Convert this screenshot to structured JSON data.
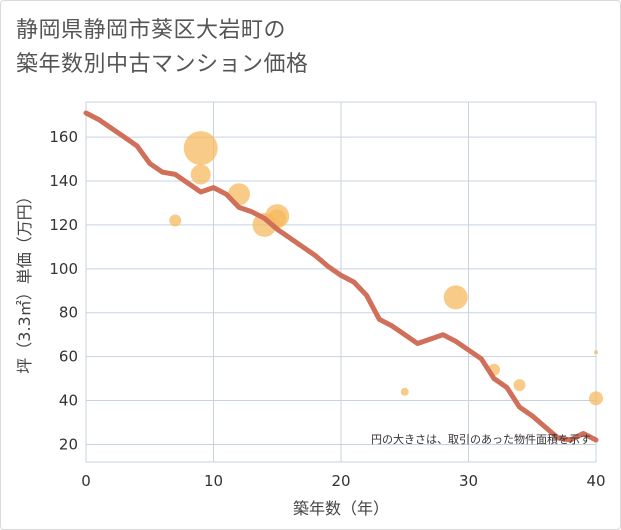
{
  "title_line1": "静岡県静岡市葵区大岩町の",
  "title_line2": "築年数別中古マンション価格",
  "chart_data": {
    "type": "scatter",
    "xlabel": "築年数（年）",
    "ylabel": "坪（3.3㎡）単価（万円）",
    "xlim": [
      0,
      40
    ],
    "ylim": [
      12,
      176
    ],
    "xticks": [
      0,
      10,
      20,
      30,
      40
    ],
    "yticks": [
      20,
      40,
      60,
      80,
      100,
      120,
      140,
      160
    ],
    "grid": true,
    "note": "円の大きさは、取引のあった物件面積を示す",
    "colors": {
      "bubble": "#f5b95a",
      "line": "#d0705a",
      "grid": "#c8d3e0"
    },
    "scatter": [
      {
        "x": 7,
        "y": 122,
        "r": 6
      },
      {
        "x": 9,
        "y": 155,
        "r": 17
      },
      {
        "x": 9,
        "y": 143,
        "r": 10
      },
      {
        "x": 12,
        "y": 134,
        "r": 11
      },
      {
        "x": 14,
        "y": 120,
        "r": 12
      },
      {
        "x": 15,
        "y": 124,
        "r": 12
      },
      {
        "x": 15,
        "y": 123,
        "r": 9
      },
      {
        "x": 25,
        "y": 44,
        "r": 4
      },
      {
        "x": 29,
        "y": 87,
        "r": 12
      },
      {
        "x": 32,
        "y": 54,
        "r": 6
      },
      {
        "x": 34,
        "y": 47,
        "r": 6
      },
      {
        "x": 40,
        "y": 41,
        "r": 7
      },
      {
        "x": 40,
        "y": 62,
        "r": 2
      }
    ],
    "series": [
      {
        "x": [
          0,
          1,
          2,
          3,
          4,
          5,
          6,
          7,
          8,
          9,
          10,
          11,
          12,
          13,
          14,
          15,
          16,
          17,
          18,
          19,
          20,
          21,
          22,
          23,
          24,
          25,
          26,
          27,
          28,
          29,
          30,
          31,
          32,
          33,
          34,
          35,
          36,
          37,
          38,
          39,
          40
        ],
        "values": [
          171,
          168,
          164,
          160,
          156,
          148,
          144,
          143,
          139,
          135,
          137,
          134,
          128,
          126,
          123,
          118,
          114,
          110,
          106,
          101,
          97,
          94,
          88,
          77,
          74,
          70,
          66,
          68,
          70,
          67,
          63,
          59,
          50,
          46,
          37,
          33,
          28,
          23,
          22,
          25,
          22
        ]
      }
    ]
  }
}
